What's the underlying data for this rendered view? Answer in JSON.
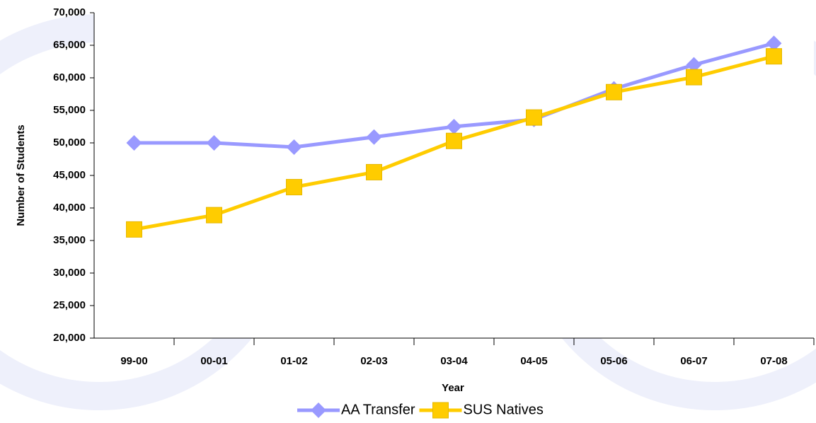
{
  "chart_data": {
    "type": "line",
    "x_label": "Year",
    "y_label": "Number of Students",
    "categories": [
      "99-00",
      "00-01",
      "01-02",
      "02-03",
      "03-04",
      "04-05",
      "05-06",
      "06-07",
      "07-08"
    ],
    "series": [
      {
        "name": "AA Transfer",
        "color": "#9999ff",
        "marker": "diamond",
        "values": [
          50000,
          50000,
          49350,
          50900,
          52500,
          53600,
          58300,
          62000,
          65300
        ]
      },
      {
        "name": "SUS Natives",
        "color": "#ffcc00",
        "marker": "square",
        "values": [
          36700,
          38900,
          43200,
          45500,
          50300,
          53900,
          57800,
          60100,
          63300
        ]
      }
    ],
    "ylim": [
      20000,
      70000
    ],
    "yticks": [
      {
        "value": 20000,
        "label": "20,000"
      },
      {
        "value": 25000,
        "label": "25,000"
      },
      {
        "value": 30000,
        "label": "30,000"
      },
      {
        "value": 35000,
        "label": "35,000"
      },
      {
        "value": 40000,
        "label": "40,000"
      },
      {
        "value": 45000,
        "label": "45,000"
      },
      {
        "value": 50000,
        "label": "50,000"
      },
      {
        "value": 55000,
        "label": "55,000"
      },
      {
        "value": 60000,
        "label": "60,000"
      },
      {
        "value": 65000,
        "label": "65,000"
      },
      {
        "value": 70000,
        "label": "70,000"
      }
    ],
    "legend": "bottom"
  }
}
